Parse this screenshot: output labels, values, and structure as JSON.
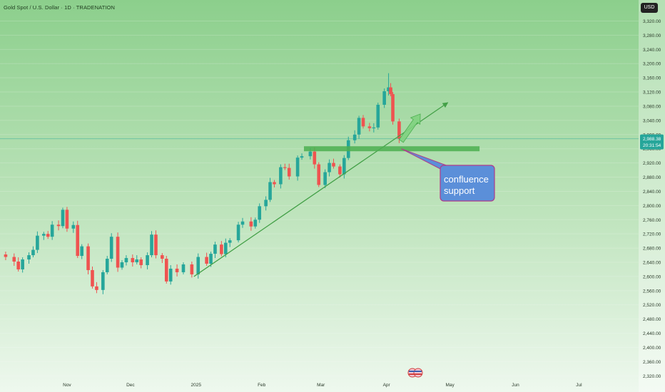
{
  "header": {
    "symbol_title": "Gold Spot / U.S. Dollar · 1D · TRADENATION",
    "currency": "USD"
  },
  "price_tag": {
    "price": "2,988.38",
    "timer": "20:31:54"
  },
  "annotation": {
    "line1": "confluence",
    "line2": "support"
  },
  "colors": {
    "up": "#26a69a",
    "down": "#ef5350",
    "trendline": "#43a047",
    "support_zone": "#4caf50",
    "callout_bg": "#5b8fd9",
    "callout_border": "#b03a8a",
    "background_top": "#8ccf8c",
    "background_bottom": "#eef8ee"
  },
  "chart_data": {
    "type": "candlestick",
    "y_ticks": [
      "3,320.00",
      "3,280.00",
      "3,240.00",
      "3,200.00",
      "3,160.00",
      "3,120.00",
      "3,080.00",
      "3,040.00",
      "3,000.00",
      "2,960.00",
      "2,920.00",
      "2,880.00",
      "2,840.00",
      "2,800.00",
      "2,760.00",
      "2,720.00",
      "2,680.00",
      "2,640.00",
      "2,600.00",
      "2,560.00",
      "2,520.00",
      "2,480.00",
      "2,440.00",
      "2,400.00",
      "2,360.00",
      "2,320.00"
    ],
    "ylim": [
      2310,
      3340
    ],
    "x_ticks": [
      {
        "label": "Nov",
        "date": "2024-11-01"
      },
      {
        "label": "Dec",
        "date": "2024-12-01"
      },
      {
        "label": "2025",
        "date": "2025-01-01"
      },
      {
        "label": "Feb",
        "date": "2025-02-01"
      },
      {
        "label": "Mar",
        "date": "2025-03-01"
      },
      {
        "label": "Apr",
        "date": "2025-04-01"
      },
      {
        "label": "May",
        "date": "2025-05-01"
      },
      {
        "label": "Jun",
        "date": "2025-06-01"
      },
      {
        "label": "Jul",
        "date": "2025-07-01"
      }
    ],
    "close_series": [
      [
        "2024-10-01",
        2662
      ],
      [
        "2024-10-03",
        2655
      ],
      [
        "2024-10-07",
        2642
      ],
      [
        "2024-10-09",
        2620
      ],
      [
        "2024-10-11",
        2648
      ],
      [
        "2024-10-14",
        2660
      ],
      [
        "2024-10-16",
        2675
      ],
      [
        "2024-10-18",
        2715
      ],
      [
        "2024-10-21",
        2720
      ],
      [
        "2024-10-23",
        2712
      ],
      [
        "2024-10-25",
        2746
      ],
      [
        "2024-10-28",
        2742
      ],
      [
        "2024-10-30",
        2788
      ],
      [
        "2024-11-01",
        2735
      ],
      [
        "2024-11-04",
        2745
      ],
      [
        "2024-11-06",
        2658
      ],
      [
        "2024-11-08",
        2685
      ],
      [
        "2024-11-11",
        2618
      ],
      [
        "2024-11-13",
        2572
      ],
      [
        "2024-11-15",
        2562
      ],
      [
        "2024-11-18",
        2612
      ],
      [
        "2024-11-20",
        2650
      ],
      [
        "2024-11-22",
        2712
      ],
      [
        "2024-11-25",
        2625
      ],
      [
        "2024-11-27",
        2640
      ],
      [
        "2024-11-29",
        2652
      ],
      [
        "2024-12-02",
        2640
      ],
      [
        "2024-12-04",
        2648
      ],
      [
        "2024-12-06",
        2632
      ],
      [
        "2024-12-09",
        2660
      ],
      [
        "2024-12-11",
        2718
      ],
      [
        "2024-12-13",
        2660
      ],
      [
        "2024-12-16",
        2650
      ],
      [
        "2024-12-18",
        2586
      ],
      [
        "2024-12-20",
        2622
      ],
      [
        "2024-12-23",
        2612
      ],
      [
        "2024-12-26",
        2634
      ],
      [
        "2024-12-30",
        2606
      ],
      [
        "2025-01-02",
        2655
      ],
      [
        "2025-01-06",
        2636
      ],
      [
        "2025-01-08",
        2664
      ],
      [
        "2025-01-10",
        2690
      ],
      [
        "2025-01-13",
        2663
      ],
      [
        "2025-01-15",
        2695
      ],
      [
        "2025-01-17",
        2702
      ],
      [
        "2025-01-21",
        2746
      ],
      [
        "2025-01-23",
        2755
      ],
      [
        "2025-01-27",
        2741
      ],
      [
        "2025-01-29",
        2760
      ],
      [
        "2025-01-31",
        2798
      ],
      [
        "2025-02-03",
        2816
      ],
      [
        "2025-02-05",
        2866
      ],
      [
        "2025-02-07",
        2860
      ],
      [
        "2025-02-10",
        2908
      ],
      [
        "2025-02-12",
        2906
      ],
      [
        "2025-02-14",
        2882
      ],
      [
        "2025-02-18",
        2935
      ],
      [
        "2025-02-20",
        2939
      ],
      [
        "2025-02-24",
        2952
      ],
      [
        "2025-02-26",
        2916
      ],
      [
        "2025-02-28",
        2858
      ],
      [
        "2025-03-03",
        2894
      ],
      [
        "2025-03-05",
        2920
      ],
      [
        "2025-03-07",
        2910
      ],
      [
        "2025-03-10",
        2888
      ],
      [
        "2025-03-12",
        2934
      ],
      [
        "2025-03-14",
        2984
      ],
      [
        "2025-03-17",
        3000
      ],
      [
        "2025-03-19",
        3047
      ],
      [
        "2025-03-21",
        3023
      ],
      [
        "2025-03-24",
        3018
      ],
      [
        "2025-03-26",
        3020
      ],
      [
        "2025-03-28",
        3084
      ],
      [
        "2025-03-31",
        3122
      ],
      [
        "2025-04-02",
        3133
      ],
      [
        "2025-04-03",
        3114
      ],
      [
        "2025-04-04",
        3037
      ],
      [
        "2025-04-07",
        2988
      ]
    ],
    "current_price": 2988.38,
    "annotations": [
      {
        "type": "trendline",
        "from": [
          "2024-12-31",
          2600
        ],
        "to": [
          "2025-04-30",
          3090
        ]
      },
      {
        "type": "horizontal_zone",
        "from_date": "2025-02-21",
        "to_date": "2025-05-15",
        "value": 2960
      },
      {
        "type": "arrow",
        "from": [
          "2025-04-08",
          2982
        ],
        "to": [
          "2025-04-17",
          3058
        ]
      },
      {
        "type": "callout",
        "text": "confluence support",
        "anchor": [
          "2025-04-08",
          2960
        ]
      }
    ]
  }
}
